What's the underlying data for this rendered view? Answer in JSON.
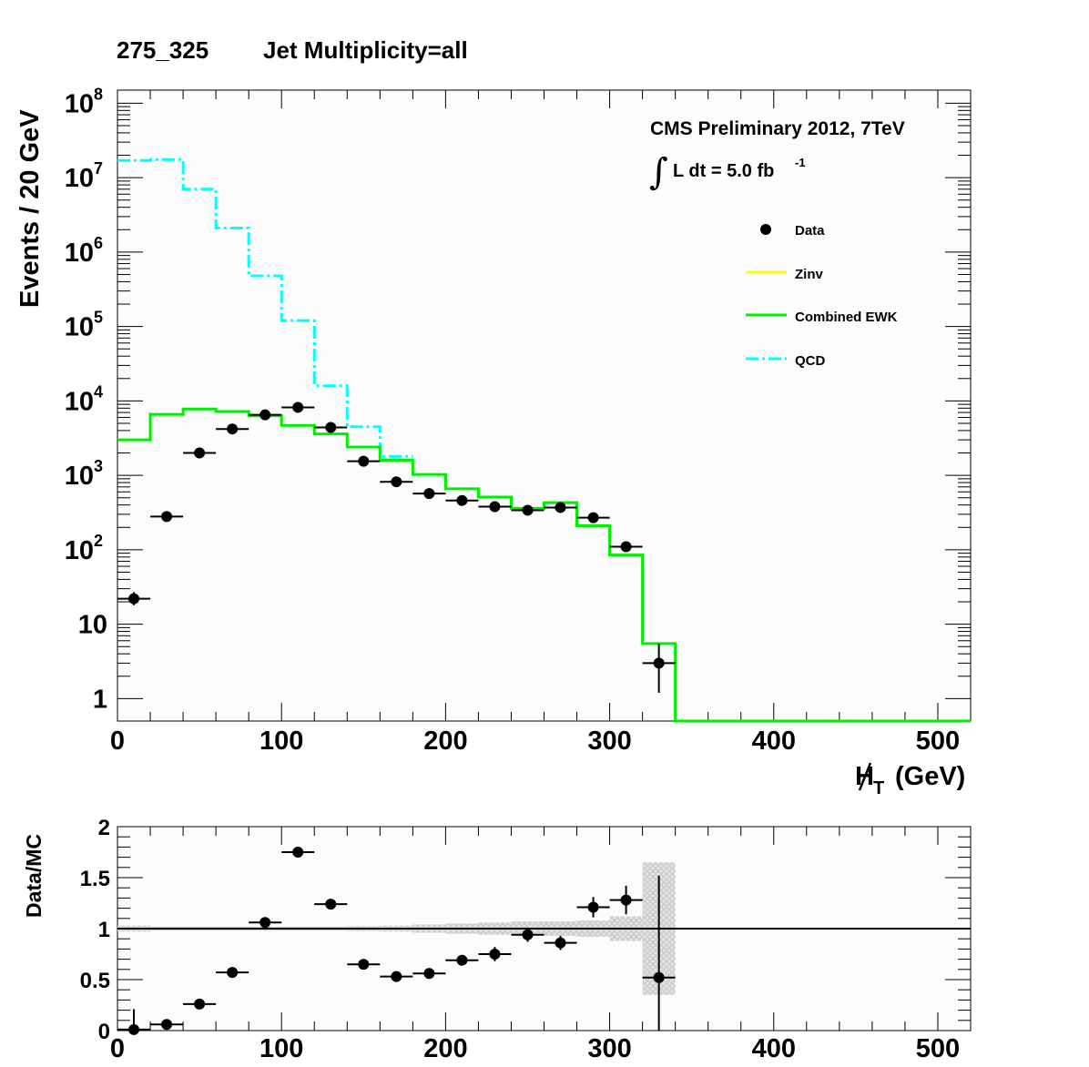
{
  "title": {
    "bin": "275_325",
    "label": "Jet Multiplicity=all"
  },
  "annotations": {
    "experiment": "CMS Preliminary 2012, 7TeV",
    "lumi_text": "L dt = 5.0 fb",
    "lumi_exp": "-1"
  },
  "legend": {
    "data": "Data",
    "zinv": "Zinv",
    "ewk": "Combined EWK",
    "qcd": "QCD"
  },
  "colors": {
    "data": "#000000",
    "zinv": "#ffff00",
    "ewk": "#00ee00",
    "qcd": "#00ffff",
    "uncertainty": "#cccccc"
  },
  "chart_data": [
    {
      "type": "line",
      "panel": "main",
      "ylabel": "Events / 20 GeV",
      "xlabel_main": "H",
      "xlabel_sub": "T",
      "xlabel_unit": "(GeV)",
      "xlim": [
        0,
        520
      ],
      "ylim": [
        0.5,
        150000000
      ],
      "yscale": "log",
      "x_ticks": [
        "0",
        "100",
        "200",
        "300",
        "400",
        "500"
      ],
      "y_ticks": [
        {
          "base": "1",
          "exp": ""
        },
        {
          "base": "10",
          "exp": ""
        },
        {
          "base": "10",
          "exp": "2"
        },
        {
          "base": "10",
          "exp": "3"
        },
        {
          "base": "10",
          "exp": "4"
        },
        {
          "base": "10",
          "exp": "5"
        },
        {
          "base": "10",
          "exp": "6"
        },
        {
          "base": "10",
          "exp": "7"
        },
        {
          "base": "10",
          "exp": "8"
        }
      ],
      "bin_edges": [
        0,
        20,
        40,
        60,
        80,
        100,
        120,
        140,
        160,
        180,
        200,
        220,
        240,
        260,
        280,
        300,
        320,
        340,
        360,
        380,
        400,
        420,
        440,
        460,
        480,
        500,
        520
      ],
      "series": [
        {
          "name": "Combined EWK",
          "kind": "histogram",
          "values": [
            3000,
            6600,
            7800,
            7200,
            6300,
            4700,
            3600,
            2400,
            1600,
            1030,
            660,
            510,
            360,
            430,
            210,
            85,
            5.5,
            0,
            0,
            0,
            0,
            0,
            0,
            0,
            0,
            0
          ]
        },
        {
          "name": "QCD",
          "kind": "histogram",
          "values": [
            17000000,
            17500000,
            7000000,
            2100000,
            480000,
            120000,
            16000,
            4500,
            1800
          ]
        },
        {
          "name": "Data",
          "kind": "points",
          "x": [
            10,
            30,
            50,
            70,
            90,
            110,
            130,
            150,
            170,
            190,
            210,
            230,
            250,
            270,
            290,
            310,
            330
          ],
          "y": [
            22,
            280,
            2000,
            4200,
            6500,
            8200,
            4400,
            1550,
            820,
            570,
            460,
            380,
            340,
            370,
            270,
            110,
            3
          ],
          "err_low": [
            4,
            16,
            45,
            65,
            80,
            90,
            66,
            40,
            29,
            24,
            21,
            19,
            18,
            19,
            16,
            10,
            1.8
          ],
          "err_high": [
            5,
            17,
            45,
            65,
            80,
            90,
            66,
            40,
            29,
            24,
            21,
            20,
            18,
            19,
            17,
            11,
            2.5
          ]
        }
      ]
    },
    {
      "type": "scatter",
      "panel": "ratio",
      "ylabel": "Data/MC",
      "xlim": [
        0,
        520
      ],
      "ylim": [
        0,
        2
      ],
      "x_ticks": [
        "0",
        "100",
        "200",
        "300",
        "400",
        "500"
      ],
      "y_ticks": [
        "0",
        "0.5",
        "1",
        "1.5",
        "2"
      ],
      "reference_line": 1,
      "x": [
        10,
        30,
        50,
        70,
        90,
        110,
        130,
        150,
        170,
        190,
        210,
        230,
        250,
        270,
        290,
        310,
        330
      ],
      "values": [
        0.01,
        0.06,
        0.26,
        0.57,
        1.06,
        1.75,
        1.24,
        0.65,
        0.53,
        0.56,
        0.69,
        0.75,
        0.94,
        0.86,
        1.21,
        1.28,
        0.52
      ],
      "err": [
        0.2,
        0.01,
        0.01,
        0.01,
        0.015,
        0.02,
        0.02,
        0.02,
        0.02,
        0.03,
        0.05,
        0.07,
        0.07,
        0.07,
        0.1,
        0.14,
        1.0
      ],
      "uncertainty_band": [
        0.03,
        0.02,
        0.02,
        0.02,
        0.02,
        0.02,
        0.02,
        0.025,
        0.03,
        0.04,
        0.05,
        0.06,
        0.07,
        0.07,
        0.08,
        0.12,
        0.65
      ]
    }
  ]
}
